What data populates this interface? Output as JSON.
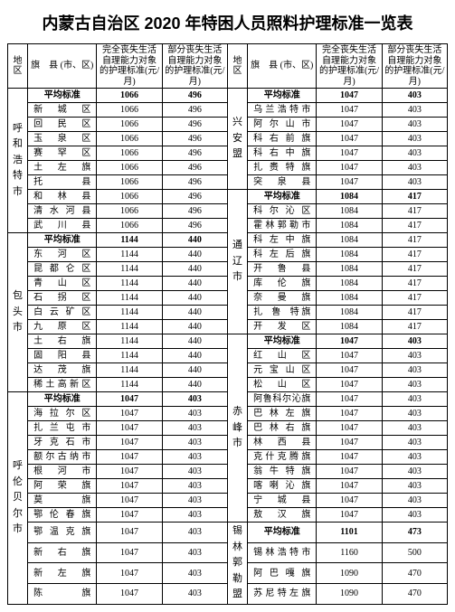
{
  "title": "内蒙古自治区 2020 年特困人员照料护理标准一览表",
  "headers": {
    "region": "地区",
    "county": "旗　县\n(市、区)",
    "full": "完全丧失生活自理能力对象的护理标准(元/月)",
    "part": "部分丧失生活自理能力对象的护理标准(元/月)"
  },
  "avg_label": "平均标准",
  "left": [
    {
      "region": "呼和浩特市",
      "rows": [
        {
          "avg": true,
          "c": "平均标准",
          "f": "1066",
          "p": "496"
        },
        {
          "c": "新　城　区",
          "f": "1066",
          "p": "496"
        },
        {
          "c": "回　民　区",
          "f": "1066",
          "p": "496"
        },
        {
          "c": "玉　泉　区",
          "f": "1066",
          "p": "496"
        },
        {
          "c": "赛　罕　区",
          "f": "1066",
          "p": "496"
        },
        {
          "c": "土　左　旗",
          "f": "1066",
          "p": "496"
        },
        {
          "c": "托　　　县",
          "f": "1066",
          "p": "496"
        },
        {
          "c": "和　林　县",
          "f": "1066",
          "p": "496"
        },
        {
          "c": "清 水 河 县",
          "f": "1066",
          "p": "496"
        },
        {
          "c": "武　川　县",
          "f": "1066",
          "p": "496"
        }
      ]
    },
    {
      "region": "包头市",
      "rows": [
        {
          "avg": true,
          "c": "平均标准",
          "f": "1144",
          "p": "440"
        },
        {
          "c": "东　河　区",
          "f": "1144",
          "p": "440"
        },
        {
          "c": "昆 都 仑 区",
          "f": "1144",
          "p": "440"
        },
        {
          "c": "青　山　区",
          "f": "1144",
          "p": "440"
        },
        {
          "c": "石　拐　区",
          "f": "1144",
          "p": "440"
        },
        {
          "c": "白 云 矿 区",
          "f": "1144",
          "p": "440"
        },
        {
          "c": "九　原　区",
          "f": "1144",
          "p": "440"
        },
        {
          "c": "土　右　旗",
          "f": "1144",
          "p": "440"
        },
        {
          "c": "固　阳　县",
          "f": "1144",
          "p": "440"
        },
        {
          "c": "达　茂　旗",
          "f": "1144",
          "p": "440"
        },
        {
          "c": "稀土高新区",
          "f": "1144",
          "p": "440"
        }
      ]
    },
    {
      "region": "呼伦贝尔市",
      "rows": [
        {
          "avg": true,
          "c": "平均标准",
          "f": "1047",
          "p": "403"
        },
        {
          "c": "海 拉 尔 区",
          "f": "1047",
          "p": "403"
        },
        {
          "c": "扎 兰 屯 市",
          "f": "1047",
          "p": "403"
        },
        {
          "c": "牙 克 石 市",
          "f": "1047",
          "p": "403"
        },
        {
          "c": "额尔古纳市",
          "f": "1047",
          "p": "403"
        },
        {
          "c": "根　河　市",
          "f": "1047",
          "p": "403"
        },
        {
          "c": "阿　荣　旗",
          "f": "1047",
          "p": "403"
        },
        {
          "c": "莫　　　旗",
          "f": "1047",
          "p": "403"
        },
        {
          "c": "鄂 伦 春 旗",
          "f": "1047",
          "p": "403"
        },
        {
          "c": "鄂 温 克 旗",
          "f": "1047",
          "p": "403"
        },
        {
          "c": "新　右　旗",
          "f": "1047",
          "p": "403"
        },
        {
          "c": "新　左　旗",
          "f": "1047",
          "p": "403"
        },
        {
          "c": "陈　　　旗",
          "f": "1047",
          "p": "403"
        }
      ]
    }
  ],
  "right": [
    {
      "region": "兴安盟",
      "rows": [
        {
          "avg": true,
          "c": "平均标准",
          "f": "1047",
          "p": "403"
        },
        {
          "c": "乌兰浩特市",
          "f": "1047",
          "p": "403"
        },
        {
          "c": "阿 尔 山 市",
          "f": "1047",
          "p": "403"
        },
        {
          "c": "科 右 前 旗",
          "f": "1047",
          "p": "403"
        },
        {
          "c": "科 右 中 旗",
          "f": "1047",
          "p": "403"
        },
        {
          "c": "扎 赉 特 旗",
          "f": "1047",
          "p": "403"
        },
        {
          "c": "突　泉　县",
          "f": "1047",
          "p": "403"
        }
      ]
    },
    {
      "region": "通辽市",
      "rows": [
        {
          "avg": true,
          "c": "平均标准",
          "f": "1084",
          "p": "417"
        },
        {
          "c": "科 尔 沁 区",
          "f": "1084",
          "p": "417"
        },
        {
          "c": "霍林郭勒市",
          "f": "1084",
          "p": "417"
        },
        {
          "c": "科 左 中 旗",
          "f": "1084",
          "p": "417"
        },
        {
          "c": "科 左 后 旗",
          "f": "1084",
          "p": "417"
        },
        {
          "c": "开　鲁　县",
          "f": "1084",
          "p": "417"
        },
        {
          "c": "库　伦　旗",
          "f": "1084",
          "p": "417"
        },
        {
          "c": "奈　曼　旗",
          "f": "1084",
          "p": "417"
        },
        {
          "c": "扎　鲁　特 旗",
          "f": "1084",
          "p": "417"
        },
        {
          "c": "开　发　区",
          "f": "1084",
          "p": "417"
        }
      ]
    },
    {
      "region": "赤峰市",
      "rows": [
        {
          "avg": true,
          "c": "平均标准",
          "f": "1047",
          "p": "403"
        },
        {
          "c": "红　山　区",
          "f": "1047",
          "p": "403"
        },
        {
          "c": "元 宝 山 区",
          "f": "1047",
          "p": "403"
        },
        {
          "c": "松　山　区",
          "f": "1047",
          "p": "403"
        },
        {
          "c": "阿鲁科尔沁旗",
          "f": "1047",
          "p": "403"
        },
        {
          "c": "巴 林 左 旗",
          "f": "1047",
          "p": "403"
        },
        {
          "c": "巴 林 右 旗",
          "f": "1047",
          "p": "403"
        },
        {
          "c": "林　西　县",
          "f": "1047",
          "p": "403"
        },
        {
          "c": "克什克腾旗",
          "f": "1047",
          "p": "403"
        },
        {
          "c": "翁 牛 特 旗",
          "f": "1047",
          "p": "403"
        },
        {
          "c": "喀 喇 沁 旗",
          "f": "1047",
          "p": "403"
        },
        {
          "c": "宁　城　县",
          "f": "1047",
          "p": "403"
        },
        {
          "c": "敖　汉　旗",
          "f": "1047",
          "p": "403"
        }
      ]
    },
    {
      "region": "锡林郭勒盟",
      "rows": [
        {
          "avg": true,
          "c": "平均标准",
          "f": "1101",
          "p": "473"
        },
        {
          "c": "锡林浩特市",
          "f": "1160",
          "p": "500"
        },
        {
          "c": "阿 巴 嘎 旗",
          "f": "1090",
          "p": "470"
        },
        {
          "c": "苏尼特左旗",
          "f": "1090",
          "p": "470"
        }
      ]
    }
  ]
}
